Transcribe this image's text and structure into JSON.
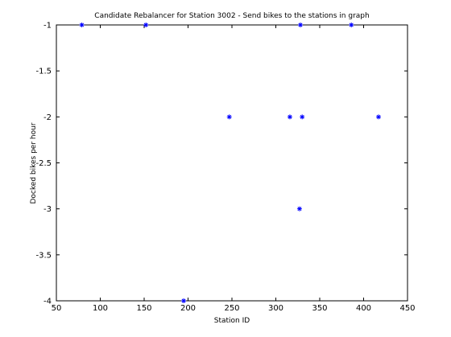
{
  "chart_data": {
    "type": "scatter",
    "title": "Candidate Rebalancer for Station 3002 - Send bikes to the stations in graph",
    "xlabel": "Station ID",
    "ylabel": "Docked bikes per hour",
    "xlim": [
      50,
      450
    ],
    "ylim": [
      -4,
      -1
    ],
    "xticks": [
      50,
      100,
      150,
      200,
      250,
      300,
      350,
      400,
      450
    ],
    "yticks": [
      -1,
      -1.5,
      -2,
      -2.5,
      -3,
      -3.5,
      -4
    ],
    "xtick_labels": [
      "50",
      "100",
      "150",
      "200",
      "250",
      "300",
      "350",
      "400",
      "450"
    ],
    "ytick_labels": [
      "-1",
      "-1.5",
      "-2",
      "-2.5",
      "-3",
      "-3.5",
      "-4"
    ],
    "grid": false,
    "marker": "asterisk",
    "marker_color": "#0000ff",
    "series": [
      {
        "x": [
          79,
          152,
          328,
          386,
          247,
          316,
          330,
          417,
          327,
          195
        ],
        "y": [
          -1,
          -1,
          -1,
          -1,
          -2,
          -2,
          -2,
          -2,
          -3,
          -4
        ]
      }
    ]
  }
}
